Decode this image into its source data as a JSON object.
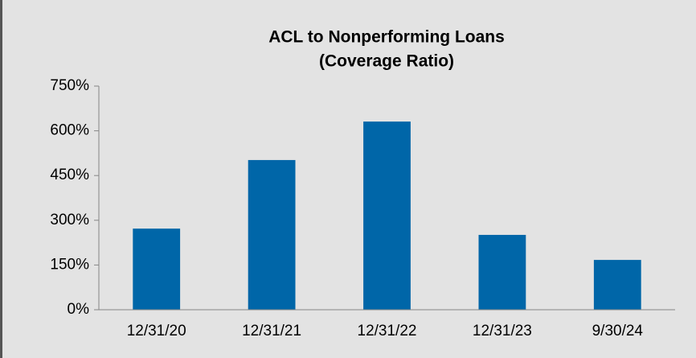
{
  "chart_data": {
    "type": "bar",
    "title": [
      "ACL to Nonperforming Loans",
      "(Coverage Ratio)"
    ],
    "categories": [
      "12/31/20",
      "12/31/21",
      "12/31/22",
      "12/31/23",
      "9/30/24"
    ],
    "values": [
      272,
      502,
      631,
      251,
      167
    ],
    "color": "#0066a8",
    "ylim": [
      0,
      750
    ],
    "yticks": [
      {
        "value": 0,
        "label": "0%"
      },
      {
        "value": 150,
        "label": "150%"
      },
      {
        "value": 300,
        "label": "300%"
      },
      {
        "value": 450,
        "label": "450%"
      },
      {
        "value": 600,
        "label": "600%"
      },
      {
        "value": 750,
        "label": "750%"
      }
    ],
    "grid": false
  }
}
